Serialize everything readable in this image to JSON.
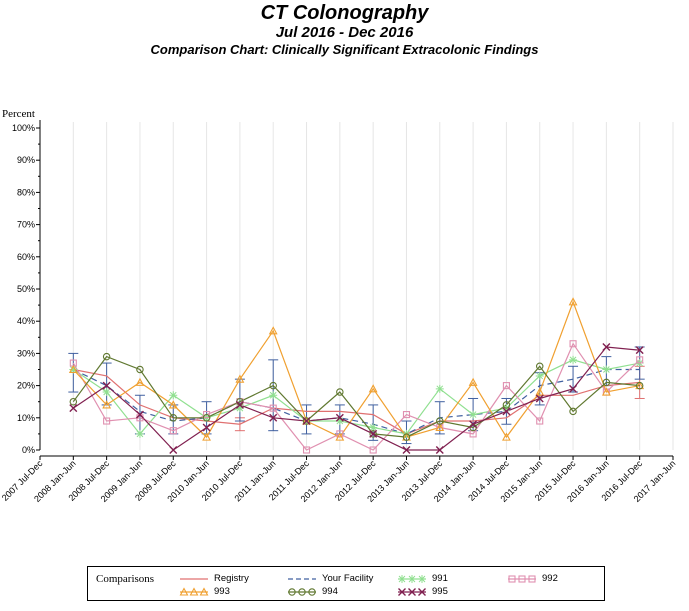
{
  "header": {
    "title": "CT Colonography",
    "subtitle": "Jul 2016 - Dec 2016",
    "subtitle2": "Comparison Chart: Clinically Significant Extracolonic Findings"
  },
  "legend": {
    "title": "Comparisons"
  },
  "chart_data": {
    "type": "line",
    "title": "CT Colonography",
    "ylabel": "Percent",
    "xlabel": "",
    "ylim": [
      0,
      100
    ],
    "yticks": [
      "0%",
      "10%",
      "20%",
      "30%",
      "40%",
      "50%",
      "60%",
      "70%",
      "80%",
      "90%",
      "100%"
    ],
    "x_ticks": [
      "2007 Jul-Dec",
      "2008 Jan-Jun",
      "2008 Jul-Dec",
      "2009 Jan-Jun",
      "2009 Jul-Dec",
      "2010 Jan-Jun",
      "2010 Jul-Dec",
      "2011 Jan-Jun",
      "2011 Jul-Dec",
      "2012 Jan-Jun",
      "2012 Jul-Dec",
      "2013 Jan-Jun",
      "2013 Jul-Dec",
      "2014 Jan-Jun",
      "2014 Jul-Dec",
      "2015 Jan-Jun",
      "2015 Jul-Dec",
      "2016 Jan-Jun",
      "2016 Jul-Dec",
      "2017 Jan-Jun"
    ],
    "categories": [
      "2008 Jan-Jun",
      "2008 Jul-Dec",
      "2009 Jan-Jun",
      "2009 Jul-Dec",
      "2010 Jan-Jun",
      "2010 Jul-Dec",
      "2011 Jan-Jun",
      "2011 Jul-Dec",
      "2012 Jan-Jun",
      "2012 Jul-Dec",
      "2013 Jan-Jun",
      "2013 Jul-Dec",
      "2014 Jan-Jun",
      "2014 Jul-Dec",
      "2015 Jan-Jun",
      "2015 Jul-Dec",
      "2016 Jan-Jun",
      "2016 Jul-Dec"
    ],
    "grid": true,
    "legend_position": "bottom",
    "series": [
      {
        "name": "Registry",
        "color": "#e07070",
        "marker": "none",
        "dash": false,
        "values": [
          25,
          23,
          14,
          10,
          9,
          8,
          13,
          12,
          12,
          11,
          5,
          9,
          9,
          10,
          17,
          17,
          20,
          21
        ],
        "ci_low": [
          null,
          null,
          null,
          null,
          null,
          6,
          null,
          null,
          null,
          null,
          null,
          null,
          null,
          null,
          null,
          null,
          null,
          16
        ],
        "ci_high": [
          null,
          null,
          null,
          null,
          null,
          10,
          null,
          null,
          null,
          null,
          null,
          null,
          null,
          null,
          null,
          null,
          null,
          26
        ]
      },
      {
        "name": "Your Facility",
        "color": "#4060a0",
        "marker": "none",
        "dash": true,
        "values": [
          25,
          20,
          12,
          9,
          10,
          15,
          13,
          9,
          10,
          8,
          5,
          10,
          11,
          12,
          20,
          22,
          25,
          25
        ],
        "ci_low": [
          18,
          14,
          5,
          5,
          5,
          9,
          6,
          5,
          5,
          3,
          2,
          5,
          6,
          8,
          14,
          18,
          20,
          22
        ],
        "ci_high": [
          30,
          27,
          17,
          14,
          15,
          22,
          28,
          14,
          14,
          14,
          9,
          15,
          16,
          16,
          24,
          26,
          29,
          32
        ]
      },
      {
        "name": "991",
        "color": "#90e090",
        "marker": "star",
        "values": [
          25,
          18,
          5,
          17,
          10,
          13,
          17,
          9,
          9,
          7,
          5,
          19,
          11,
          13,
          23,
          28,
          25,
          27
        ]
      },
      {
        "name": "992",
        "color": "#e090b0",
        "marker": "square",
        "values": [
          27,
          9,
          10,
          6,
          11,
          15,
          13,
          0,
          5,
          0,
          11,
          7,
          5,
          20,
          9,
          33,
          18,
          28
        ]
      },
      {
        "name": "993",
        "color": "#f0a030",
        "marker": "triangle",
        "values": [
          25,
          14,
          21,
          14,
          4,
          22,
          37,
          9,
          4,
          19,
          4,
          7,
          21,
          4,
          18,
          46,
          18,
          20
        ]
      },
      {
        "name": "994",
        "color": "#607830",
        "marker": "circle",
        "values": [
          15,
          29,
          25,
          10,
          10,
          15,
          20,
          9,
          18,
          5,
          4,
          9,
          7,
          14,
          26,
          12,
          21,
          20
        ]
      },
      {
        "name": "995",
        "color": "#802050",
        "marker": "x",
        "values": [
          13,
          20,
          11,
          0,
          7,
          14,
          10,
          9,
          10,
          5,
          0,
          0,
          8,
          12,
          16,
          19,
          32,
          31
        ]
      }
    ]
  }
}
